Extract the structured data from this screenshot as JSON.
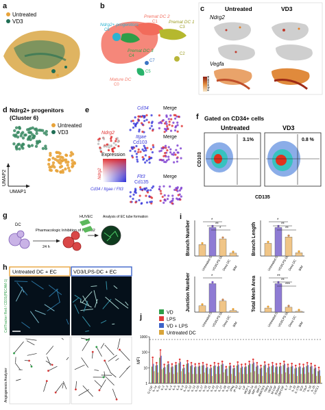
{
  "panels": {
    "a": {
      "letter": "a",
      "legend": [
        "Untreated",
        "VD3"
      ],
      "colors": {
        "untreated": "#E8A33A",
        "vd3": "#1F6E54"
      }
    },
    "b": {
      "letter": "b",
      "clusters": [
        {
          "name": "Premat DC 2",
          "id": "C1",
          "color": "#F26B5B"
        },
        {
          "name": "Premat DC 1",
          "id": "C3",
          "color": "#B5B82E"
        },
        {
          "name": "Ndrg2+ progenitors",
          "id": "C6",
          "color": "#2BB3D1"
        },
        {
          "name": "Premat DC 3",
          "id": "C4",
          "color": "#2E9E48"
        },
        {
          "name": "Mature DC",
          "id": "C0",
          "color": "#F47A6B"
        },
        {
          "name": "C2",
          "id": "C2",
          "color": "#B8B63A"
        },
        {
          "name": "C5",
          "id": "C5",
          "color": "#28B36B"
        },
        {
          "name": "C7",
          "id": "C7",
          "color": "#3A74C4"
        }
      ]
    },
    "c": {
      "letter": "c",
      "columns": [
        "Untreated",
        "VD3"
      ],
      "genes": [
        "Ndrg2",
        "Vegfa"
      ],
      "legend_label": "Expression"
    },
    "d": {
      "letter": "d",
      "title": "Ndrg2+ progenitors",
      "subtitle": "(Cluster 6)",
      "legend": [
        "Untreated",
        "VD3"
      ],
      "xlabel": "UMAP1",
      "ylabel": "UMAP2"
    },
    "e": {
      "letter": "e",
      "genes": [
        "Cd34",
        "Itgae",
        "Cd103",
        "Flt3",
        "Cd135"
      ],
      "ndrg2": "Ndrg2",
      "merge": "Merge",
      "expression": "Expression",
      "xaxis": "Cd34 / Itgae / Flt3",
      "yaxis": "Ndrg2"
    },
    "f": {
      "letter": "f",
      "title": "Gated on CD34+ cells",
      "columns": [
        "Untreated",
        "VD3"
      ],
      "percents": [
        "3.1%",
        "0.8 %"
      ],
      "xlabel": "CD135",
      "ylabel": "CD103"
    },
    "g": {
      "letter": "g",
      "dc": "DC",
      "step": "Pharmacologic Inhibition of NDRG2",
      "time": "24 h",
      "huvec": "HUVEC",
      "analysis": "Analysis of EC tube formation"
    },
    "h": {
      "letter": "h",
      "left": "Untreated DC + EC",
      "right": "VD3/LPS-DC + EC",
      "side_top": "CellTracker Red / CD31(PECAM-1)",
      "side_bottom": "Angiogenesis Analyzer"
    },
    "i": {
      "letter": "i",
      "plots": [
        {
          "ylabel": "Branch Number",
          "categories": [
            "Untreated DC",
            "VD3/LPS DC",
            "Dexa DC",
            "BIM"
          ],
          "values": [
            12,
            30,
            18,
            3
          ],
          "sig": [
            "*",
            "**",
            "*"
          ]
        },
        {
          "ylabel": "Branch Length",
          "categories": [
            "Untreated DC",
            "VD3/LPS DC",
            "Dexa DC",
            "BIM"
          ],
          "values": [
            8,
            18,
            12,
            2
          ],
          "sig": [
            "*",
            "**",
            "**"
          ]
        },
        {
          "ylabel": "Junction Number",
          "categories": [
            "Untreated DC",
            "VD3/LPS DC",
            "Dexa DC",
            "BIM"
          ],
          "values": [
            20,
            90,
            35,
            5
          ],
          "sig": [
            "*"
          ]
        },
        {
          "ylabel": "Total Mesh Area",
          "categories": [
            "Untreated DC",
            "VD3/LPS DC",
            "Dexa DC",
            "BIM"
          ],
          "values": [
            5,
            35,
            6,
            1
          ],
          "sig": [
            "**",
            "**",
            "***"
          ]
        }
      ]
    },
    "j": {
      "letter": "j",
      "ylabel": "MFI",
      "legend": [
        {
          "name": "VD",
          "color": "#2E9E48"
        },
        {
          "name": "LPS",
          "color": "#E23B3B"
        },
        {
          "name": "VD + LPS",
          "color": "#3C63C9"
        },
        {
          "name": "Untreated DC",
          "color": "#D8A43A"
        }
      ]
    }
  },
  "chart_data": {
    "type": "bar",
    "ylabel": "MFI",
    "yscale": "log",
    "ylim": [
      1,
      1000
    ],
    "categories": [
      "G-CSF",
      "IL-1a",
      "IL-1b",
      "IL-2",
      "IL-3",
      "IL-4",
      "IL-5",
      "IL-6",
      "IL-9",
      "IL-10",
      "IL-12",
      "IL-13",
      "IL-15",
      "IL-17",
      "IL-18",
      "IL-21",
      "IL-22",
      "IL-23",
      "IL-27",
      "IL-28",
      "IL-31",
      "IFNg",
      "IP-10",
      "KC",
      "LIF",
      "MCP-1",
      "MIP-1a",
      "MIP-1b",
      "MIP-2",
      "RANTES",
      "TNFa",
      "VEGF",
      "M-CSF",
      "Eotaxin",
      "GM-CSF",
      "IL-7",
      "LIX",
      "IL-33",
      "IL-17E",
      "SCF",
      "TSLP",
      "IL-16",
      "IL-25",
      "CXCL1"
    ],
    "series": [
      {
        "name": "VD",
        "values": [
          12,
          14,
          45,
          10,
          16,
          11,
          15,
          20,
          9,
          18,
          13,
          11,
          12,
          14,
          10,
          9,
          13,
          12,
          16,
          8,
          13,
          9,
          14,
          10,
          11,
          15,
          18,
          12,
          9,
          14,
          10,
          13,
          11,
          12,
          15,
          10,
          12,
          9,
          11,
          10,
          13,
          12,
          9,
          6
        ]
      },
      {
        "name": "LPS",
        "values": [
          40,
          18,
          120,
          14,
          20,
          15,
          18,
          30,
          12,
          24,
          18,
          15,
          16,
          18,
          14,
          12,
          18,
          16,
          22,
          10,
          16,
          11,
          20,
          14,
          15,
          22,
          30,
          18,
          12,
          20,
          14,
          18,
          15,
          16,
          22,
          14,
          16,
          12,
          15,
          14,
          18,
          16,
          12,
          9
        ]
      },
      {
        "name": "VD + LPS",
        "values": [
          18,
          15,
          60,
          11,
          18,
          12,
          16,
          24,
          10,
          20,
          15,
          12,
          13,
          15,
          11,
          10,
          14,
          13,
          18,
          9,
          14,
          10,
          16,
          12,
          12,
          18,
          22,
          14,
          10,
          16,
          12,
          15,
          12,
          13,
          18,
          11,
          13,
          10,
          12,
          11,
          15,
          13,
          10,
          7
        ]
      },
      {
        "name": "Untreated DC",
        "values": [
          6,
          5,
          8,
          4,
          5,
          4,
          5,
          6,
          4,
          5,
          4,
          4,
          4,
          5,
          4,
          3,
          4,
          4,
          5,
          3,
          4,
          3,
          5,
          4,
          4,
          5,
          6,
          4,
          3,
          5,
          4,
          5,
          4,
          4,
          5,
          4,
          4,
          3,
          4,
          4,
          5,
          4,
          3,
          3
        ]
      }
    ]
  }
}
